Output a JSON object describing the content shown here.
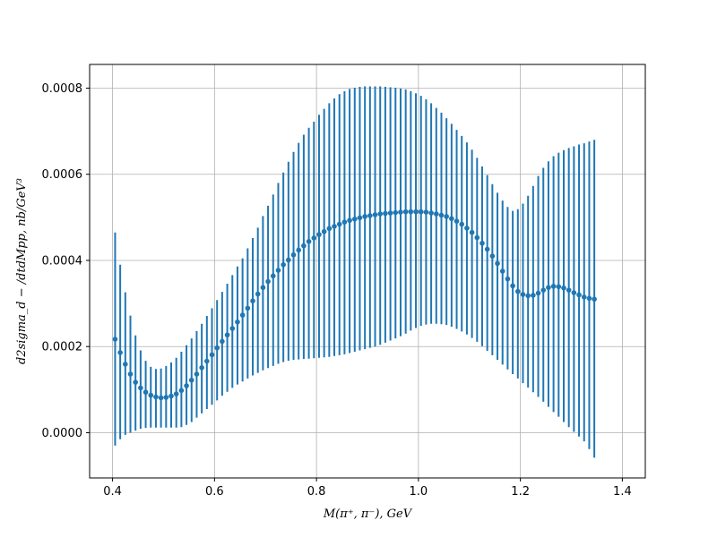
{
  "chart_data": {
    "type": "scatter",
    "xlabel": "M(π⁺, π⁻), GeV",
    "ylabel": "d2sigma_d − /dtdMpp, nb/GeV³",
    "xlim": [
      0.355,
      1.445
    ],
    "ylim": [
      -0.000105,
      0.000855
    ],
    "xticks": [
      0.4,
      0.6,
      0.8,
      1.0,
      1.2,
      1.4
    ],
    "xtick_labels": [
      "0.4",
      "0.6",
      "0.8",
      "1.0",
      "1.2",
      "1.4"
    ],
    "yticks": [
      0.0,
      0.0002,
      0.0004,
      0.0006,
      0.0008
    ],
    "ytick_labels": [
      "0.0000",
      "0.0002",
      "0.0004",
      "0.0006",
      "0.0008"
    ],
    "grid": true,
    "series": [
      {
        "color": "#1f77b4",
        "x_start": 0.405,
        "x_step": 0.01,
        "y": [
          0.000217,
          0.000186,
          0.000159,
          0.000136,
          0.000117,
          0.000104,
          9.4e-05,
          8.7e-05,
          8.3e-05,
          8.1e-05,
          8.2e-05,
          8.5e-05,
          9e-05,
          9.8e-05,
          0.000109,
          0.000122,
          0.000136,
          0.000151,
          0.000166,
          0.000181,
          0.000197,
          0.000212,
          0.000227,
          0.000242,
          0.000257,
          0.000273,
          0.000289,
          0.000306,
          0.000322,
          0.000337,
          0.000351,
          0.000364,
          0.000377,
          0.00039,
          0.000401,
          0.000413,
          0.000424,
          0.000434,
          0.000444,
          0.000452,
          0.00046,
          0.000467,
          0.000474,
          0.000479,
          0.000484,
          0.000489,
          0.000493,
          0.000496,
          0.000499,
          0.000502,
          0.000504,
          0.000506,
          0.000508,
          0.000509,
          0.00051,
          0.000511,
          0.000512,
          0.000513,
          0.000513,
          0.000513,
          0.000513,
          0.000512,
          0.00051,
          0.000508,
          0.000505,
          0.000502,
          0.000497,
          0.000491,
          0.000484,
          0.000475,
          0.000465,
          0.000453,
          0.00044,
          0.000426,
          0.00041,
          0.000393,
          0.000375,
          0.000357,
          0.000341,
          0.000328,
          0.000321,
          0.000318,
          0.000319,
          0.000324,
          0.000331,
          0.000337,
          0.00034,
          0.000339,
          0.000336,
          0.000331,
          0.000325,
          0.00032,
          0.000315,
          0.000312,
          0.00031
        ],
        "yerr_low": [
          -3e-05,
          -1.5e-05,
          -5e-06,
          0.0,
          5e-06,
          9e-06,
          1.1e-05,
          1.2e-05,
          1.2e-05,
          1.2e-05,
          1.2e-05,
          1.2e-05,
          1.2e-05,
          1.3e-05,
          1.8e-05,
          2.5e-05,
          3.5e-05,
          4.5e-05,
          5.5e-05,
          6.5e-05,
          7.5e-05,
          8.6e-05,
          9.5e-05,
          0.000104,
          0.000112,
          0.000119,
          0.000126,
          0.000133,
          0.000139,
          0.000145,
          0.00015,
          0.000155,
          0.00016,
          0.000164,
          0.000167,
          0.000169,
          0.00017,
          0.000171,
          0.000172,
          0.000173,
          0.000174,
          0.000175,
          0.000176,
          0.000178,
          0.00018,
          0.000182,
          0.000185,
          0.000188,
          0.000191,
          0.000194,
          0.000197,
          0.0002,
          0.000204,
          0.000209,
          0.000214,
          0.000219,
          0.000224,
          0.00023,
          0.000237,
          0.000243,
          0.000248,
          0.000251,
          0.000253,
          0.000253,
          0.000252,
          0.00025,
          0.000246,
          0.000241,
          0.000235,
          0.000228,
          0.00022,
          0.000211,
          0.000201,
          0.00019,
          0.00018,
          0.000169,
          0.000158,
          0.000147,
          0.000136,
          0.000126,
          0.000115,
          0.000105,
          9.4e-05,
          8.3e-05,
          7.2e-05,
          6e-05,
          4.8e-05,
          3.7e-05,
          2.5e-05,
          1.3e-05,
          2e-06,
          -9e-06,
          -2e-05,
          -3.8e-05,
          -5.8e-05
        ],
        "yerr_high": [
          0.000465,
          0.00039,
          0.000326,
          0.000272,
          0.000226,
          0.000191,
          0.000167,
          0.000153,
          0.000148,
          0.000149,
          0.000155,
          0.000163,
          0.000174,
          0.000188,
          0.000203,
          0.000219,
          0.000236,
          0.000253,
          0.000271,
          0.000289,
          0.000308,
          0.000327,
          0.000346,
          0.000366,
          0.000386,
          0.000405,
          0.000428,
          0.000452,
          0.000476,
          0.000503,
          0.000527,
          0.000553,
          0.00058,
          0.000604,
          0.000629,
          0.000652,
          0.000673,
          0.000692,
          0.000708,
          0.000722,
          0.000738,
          0.000752,
          0.000765,
          0.000776,
          0.000786,
          0.000793,
          0.000798,
          0.000801,
          0.000803,
          0.000804,
          0.000804,
          0.000804,
          0.000804,
          0.000803,
          0.000802,
          0.000801,
          0.000799,
          0.000797,
          0.000793,
          0.000788,
          0.000782,
          0.000774,
          0.000765,
          0.000754,
          0.000743,
          0.00073,
          0.000717,
          0.000703,
          0.000689,
          0.000674,
          0.000657,
          0.000638,
          0.000618,
          0.000598,
          0.000577,
          0.000557,
          0.000539,
          0.000524,
          0.000515,
          0.000519,
          0.000532,
          0.00055,
          0.000573,
          0.000596,
          0.000615,
          0.00063,
          0.000642,
          0.00065,
          0.000656,
          0.000661,
          0.000665,
          0.000669,
          0.000672,
          0.000676,
          0.00068
        ]
      }
    ]
  }
}
